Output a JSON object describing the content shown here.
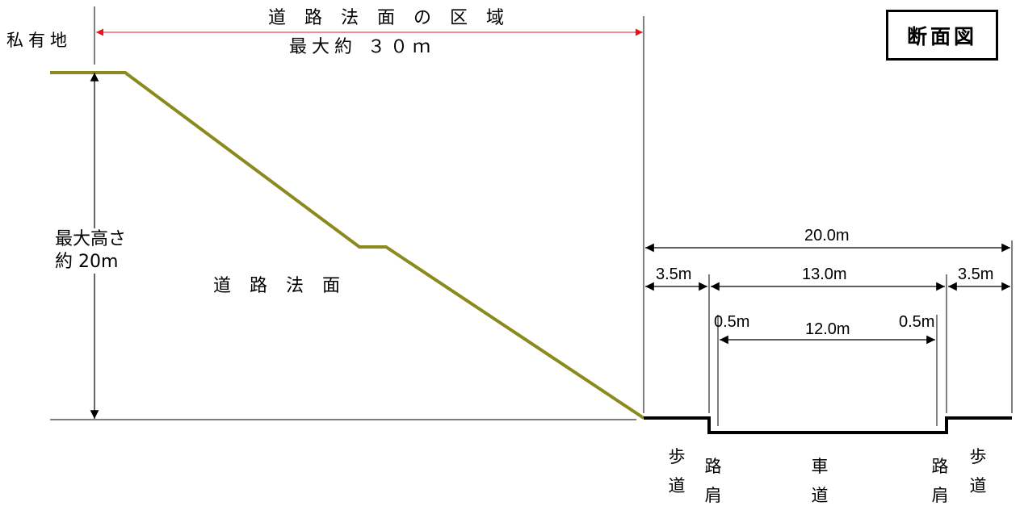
{
  "diagram": {
    "title": "断面図",
    "slope_area": {
      "label": "道 路 法 面 の 区 域",
      "width": "最大約 ３０ｍ"
    },
    "private_land": "私有地",
    "slope": {
      "height_line1": "最大高さ",
      "height_line2": "約 20m",
      "label": "道 路 法 面"
    },
    "road": {
      "total_width": "20.0m",
      "sidewalk_left_width": "3.5m",
      "between_curbs_width": "13.0m",
      "sidewalk_right_width": "3.5m",
      "shoulder_left_width": "0.5m",
      "carriageway_width": "12.0m",
      "shoulder_right_width": "0.5m",
      "sidewalk_left": "歩道",
      "shoulder_left": "路肩",
      "carriageway": "車道",
      "shoulder_right": "路肩",
      "sidewalk_right": "歩道"
    },
    "colors": {
      "slope_line": "#8b8a1e",
      "dimension_arrow": "#e8141c",
      "line": "#000000"
    }
  }
}
